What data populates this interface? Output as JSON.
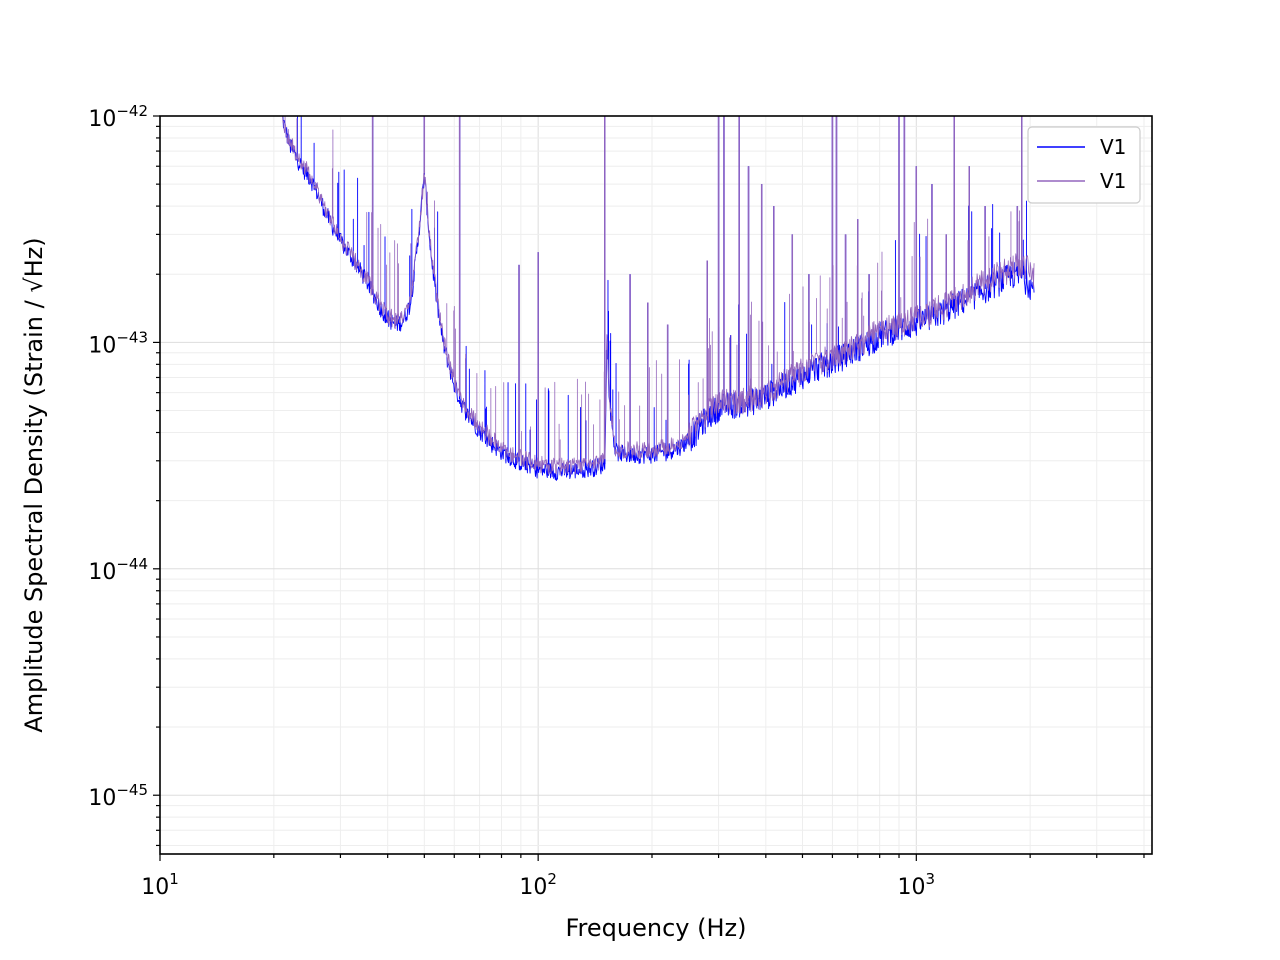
{
  "chart_data": {
    "type": "line",
    "xscale": "log",
    "yscale": "log",
    "xlabel": "Frequency (Hz)",
    "ylabel": "Amplitude Spectral Density (Strain / √Hz)",
    "xlim": [
      10,
      4200
    ],
    "ylim": [
      5.5e-46,
      1e-42
    ],
    "x_ticks": [
      {
        "value": 10,
        "base": "10",
        "exp": "1"
      },
      {
        "value": 100,
        "base": "10",
        "exp": "2"
      },
      {
        "value": 1000,
        "base": "10",
        "exp": "3"
      }
    ],
    "y_ticks": [
      {
        "value": 1e-42,
        "base": "10",
        "exp": "−42"
      },
      {
        "value": 1e-43,
        "base": "10",
        "exp": "−43"
      },
      {
        "value": 1e-44,
        "base": "10",
        "exp": "−44"
      },
      {
        "value": 1e-45,
        "base": "10",
        "exp": "−45"
      }
    ],
    "grid": true,
    "legend_position": "upper-right",
    "series": [
      {
        "name": "V1",
        "color": "#0000ff",
        "x": [
          21,
          22,
          23,
          24,
          25,
          26,
          27,
          28,
          30,
          32,
          34,
          36,
          38,
          40,
          42,
          44,
          46,
          48,
          50,
          52,
          54,
          56,
          58,
          60,
          62,
          65,
          70,
          75,
          80,
          85,
          90,
          95,
          100,
          110,
          120,
          130,
          140,
          150,
          152,
          155,
          160,
          170,
          180,
          200,
          220,
          240,
          260,
          280,
          300,
          320,
          350,
          380,
          400,
          450,
          500,
          550,
          600,
          650,
          700,
          750,
          800,
          850,
          900,
          1000,
          1100,
          1200,
          1300,
          1400,
          1500,
          1600,
          1700,
          1800,
          1900,
          2000,
          2048
        ],
        "y": [
          1e-42,
          7.5e-43,
          6.5e-43,
          5.8e-43,
          5.3e-43,
          4.6e-43,
          4e-43,
          3.5e-43,
          2.8e-43,
          2.4e-43,
          2.05e-43,
          1.75e-43,
          1.45e-43,
          1.28e-43,
          1.2e-43,
          1.25e-43,
          1.5e-43,
          2.7e-43,
          5.5e-43,
          2.5e-43,
          1.5e-43,
          1e-43,
          8e-44,
          6.5e-44,
          5.6e-44,
          4.8e-44,
          4.1e-44,
          3.6e-44,
          3.3e-44,
          3.1e-44,
          2.95e-44,
          2.85e-44,
          2.75e-44,
          2.7e-44,
          2.7e-44,
          2.75e-44,
          2.8e-44,
          2.9e-44,
          1e-43,
          5e-44,
          3.3e-44,
          3.2e-44,
          3.2e-44,
          3.2e-44,
          3.3e-44,
          3.5e-44,
          4e-44,
          4.7e-44,
          5.2e-44,
          5.3e-44,
          5.4e-44,
          5.6e-44,
          5.8e-44,
          6.5e-44,
          7.2e-44,
          7.8e-44,
          8.3e-44,
          8.8e-44,
          9.5e-44,
          1e-43,
          1.08e-43,
          1.12e-43,
          1.15e-43,
          1.22e-43,
          1.3e-43,
          1.4e-43,
          1.5e-43,
          1.6e-43,
          1.7e-43,
          1.8e-43,
          1.9e-43,
          2e-43,
          1.95e-43,
          1.8e-43,
          1.7e-43
        ],
        "peaks": [
          {
            "x": 36.5,
            "y": 1e-42
          },
          {
            "x": 50,
            "y": 1e-42
          },
          {
            "x": 62,
            "y": 1e-42
          },
          {
            "x": 89,
            "y": 2.2e-43
          },
          {
            "x": 100,
            "y": 2.5e-43
          },
          {
            "x": 150,
            "y": 1e-42
          },
          {
            "x": 175,
            "y": 2e-43
          },
          {
            "x": 195,
            "y": 1.5e-43
          },
          {
            "x": 220,
            "y": 1.2e-43
          },
          {
            "x": 280,
            "y": 2.3e-43
          },
          {
            "x": 300,
            "y": 1e-42
          },
          {
            "x": 310,
            "y": 1e-42
          },
          {
            "x": 340,
            "y": 1e-42
          },
          {
            "x": 360,
            "y": 6e-43
          },
          {
            "x": 390,
            "y": 5e-43
          },
          {
            "x": 420,
            "y": 4e-43
          },
          {
            "x": 470,
            "y": 3e-43
          },
          {
            "x": 520,
            "y": 2e-43
          },
          {
            "x": 600,
            "y": 1e-42
          },
          {
            "x": 615,
            "y": 1e-42
          },
          {
            "x": 650,
            "y": 3e-43
          },
          {
            "x": 700,
            "y": 3.5e-43
          },
          {
            "x": 750,
            "y": 2e-43
          },
          {
            "x": 900,
            "y": 1e-42
          },
          {
            "x": 930,
            "y": 1e-42
          },
          {
            "x": 1000,
            "y": 6e-43
          },
          {
            "x": 1100,
            "y": 5e-43
          },
          {
            "x": 1200,
            "y": 3e-43
          },
          {
            "x": 1260,
            "y": 1e-42
          },
          {
            "x": 1380,
            "y": 6e-43
          },
          {
            "x": 1520,
            "y": 4e-43
          },
          {
            "x": 1850,
            "y": 4e-43
          },
          {
            "x": 1900,
            "y": 1e-42
          }
        ]
      },
      {
        "name": "V1",
        "color": "#9467bd",
        "x": [
          21,
          22,
          23,
          24,
          25,
          26,
          27,
          28,
          30,
          32,
          34,
          36,
          38,
          40,
          42,
          44,
          46,
          48,
          50,
          52,
          54,
          56,
          58,
          60,
          62,
          65,
          70,
          75,
          80,
          85,
          90,
          95,
          100,
          110,
          120,
          130,
          140,
          150,
          152,
          155,
          160,
          170,
          180,
          200,
          220,
          240,
          260,
          280,
          300,
          320,
          350,
          380,
          400,
          450,
          500,
          550,
          600,
          650,
          700,
          750,
          800,
          850,
          900,
          1000,
          1100,
          1200,
          1300,
          1400,
          1500,
          1600,
          1700,
          1800,
          1900,
          2000,
          2048
        ],
        "y": [
          1e-42,
          7.8e-43,
          6.8e-43,
          6e-43,
          5.5e-43,
          4.8e-43,
          4.1e-43,
          3.6e-43,
          2.9e-43,
          2.45e-43,
          2.1e-43,
          1.8e-43,
          1.5e-43,
          1.32e-43,
          1.25e-43,
          1.3e-43,
          1.55e-43,
          2.8e-43,
          5.6e-43,
          2.6e-43,
          1.55e-43,
          1.05e-43,
          8.3e-44,
          6.7e-44,
          5.8e-44,
          5e-44,
          4.3e-44,
          3.8e-44,
          3.45e-44,
          3.25e-44,
          3.1e-44,
          3e-44,
          2.9e-44,
          2.85e-44,
          2.85e-44,
          2.9e-44,
          2.95e-44,
          3.05e-44,
          1.05e-43,
          5.2e-44,
          3.45e-44,
          3.35e-44,
          3.35e-44,
          3.35e-44,
          3.45e-44,
          3.65e-44,
          4.2e-44,
          4.9e-44,
          5.4e-44,
          5.5e-44,
          5.6e-44,
          5.8e-44,
          6e-44,
          6.8e-44,
          7.5e-44,
          8.1e-44,
          8.7e-44,
          9.2e-44,
          1e-43,
          1.05e-43,
          1.13e-43,
          1.17e-43,
          1.2e-43,
          1.28e-43,
          1.37e-43,
          1.48e-43,
          1.6e-43,
          1.72e-43,
          1.85e-43,
          1.95e-43,
          2.05e-43,
          2.15e-43,
          2.2e-43,
          2.1e-43,
          2e-43
        ],
        "peaks": [
          {
            "x": 36.5,
            "y": 1e-42
          },
          {
            "x": 50,
            "y": 1e-42
          },
          {
            "x": 62,
            "y": 1e-42
          },
          {
            "x": 89,
            "y": 2.2e-43
          },
          {
            "x": 100,
            "y": 2.5e-43
          },
          {
            "x": 150,
            "y": 1e-42
          },
          {
            "x": 175,
            "y": 2e-43
          },
          {
            "x": 195,
            "y": 1.5e-43
          },
          {
            "x": 220,
            "y": 1.2e-43
          },
          {
            "x": 280,
            "y": 2.3e-43
          },
          {
            "x": 300,
            "y": 1e-42
          },
          {
            "x": 310,
            "y": 1e-42
          },
          {
            "x": 340,
            "y": 1e-42
          },
          {
            "x": 360,
            "y": 6e-43
          },
          {
            "x": 390,
            "y": 5e-43
          },
          {
            "x": 420,
            "y": 4e-43
          },
          {
            "x": 470,
            "y": 3e-43
          },
          {
            "x": 520,
            "y": 2e-43
          },
          {
            "x": 600,
            "y": 1e-42
          },
          {
            "x": 615,
            "y": 1e-42
          },
          {
            "x": 650,
            "y": 3e-43
          },
          {
            "x": 700,
            "y": 3.5e-43
          },
          {
            "x": 750,
            "y": 2e-43
          },
          {
            "x": 900,
            "y": 1e-42
          },
          {
            "x": 930,
            "y": 1e-42
          },
          {
            "x": 1000,
            "y": 6e-43
          },
          {
            "x": 1100,
            "y": 5e-43
          },
          {
            "x": 1200,
            "y": 3e-43
          },
          {
            "x": 1260,
            "y": 1e-42
          },
          {
            "x": 1380,
            "y": 6e-43
          },
          {
            "x": 1520,
            "y": 4e-43
          },
          {
            "x": 1850,
            "y": 4e-43
          },
          {
            "x": 1900,
            "y": 1e-42
          }
        ]
      }
    ]
  }
}
